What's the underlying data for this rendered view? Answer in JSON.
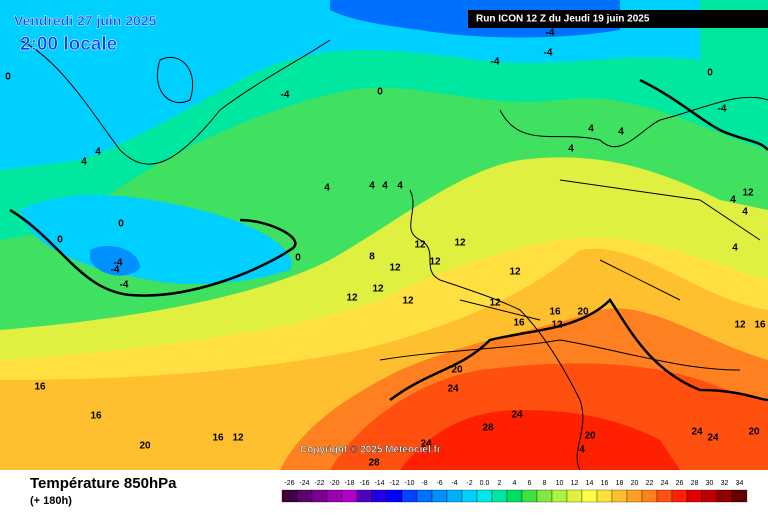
{
  "header": {
    "date": "Vendredi 27 juin 2025",
    "time": "2:00 locale",
    "run": "Run ICON 12 Z du Jeudi 19 juin 2025"
  },
  "footer": {
    "title": "Température 850hPa",
    "subtitle": "(+ 180h)",
    "copyright": "Copyright © 2025 Meteociel.fr"
  },
  "scale": {
    "labels": [
      "-26",
      "-24",
      "-22",
      "-20",
      "-18",
      "-16",
      "-14",
      "-12",
      "-10",
      "-8",
      "-6",
      "-4",
      "-2",
      "0.0",
      "2",
      "4",
      "6",
      "8",
      "10",
      "12",
      "14",
      "16",
      "18",
      "20",
      "22",
      "24",
      "26",
      "28",
      "30",
      "32",
      "34"
    ],
    "colors": [
      "#3a0040",
      "#5a0070",
      "#7a0090",
      "#9a00b0",
      "#b000c8",
      "#5000c0",
      "#2000e0",
      "#0000ff",
      "#0040ff",
      "#0070ff",
      "#0090ff",
      "#00b0ff",
      "#00d0ff",
      "#00e8e8",
      "#00e8a0",
      "#00e060",
      "#40e040",
      "#80e840",
      "#b0f040",
      "#e0f040",
      "#ffff40",
      "#ffe040",
      "#ffc030",
      "#ffa020",
      "#ff8020",
      "#ff5010",
      "#ff2000",
      "#e00000",
      "#c00000",
      "#900000",
      "#600000"
    ]
  },
  "contour_labels": [
    "0",
    "-4",
    "4",
    "4",
    "0",
    "-4",
    "-4",
    "-4",
    "-4",
    "-4",
    "0",
    "0",
    "0",
    "-4",
    "-4",
    "0",
    "4",
    "4",
    "4",
    "4",
    "4",
    "4",
    "4",
    "8",
    "12",
    "12",
    "12",
    "12",
    "12",
    "12",
    "12",
    "12",
    "12",
    "16",
    "16",
    "16",
    "16",
    "16",
    "20",
    "20",
    "20",
    "20",
    "24",
    "24",
    "24",
    "28",
    "28",
    "24",
    "24",
    "20",
    "4",
    "4",
    "4",
    "4",
    "12",
    "12",
    "16",
    "12",
    "12"
  ]
}
